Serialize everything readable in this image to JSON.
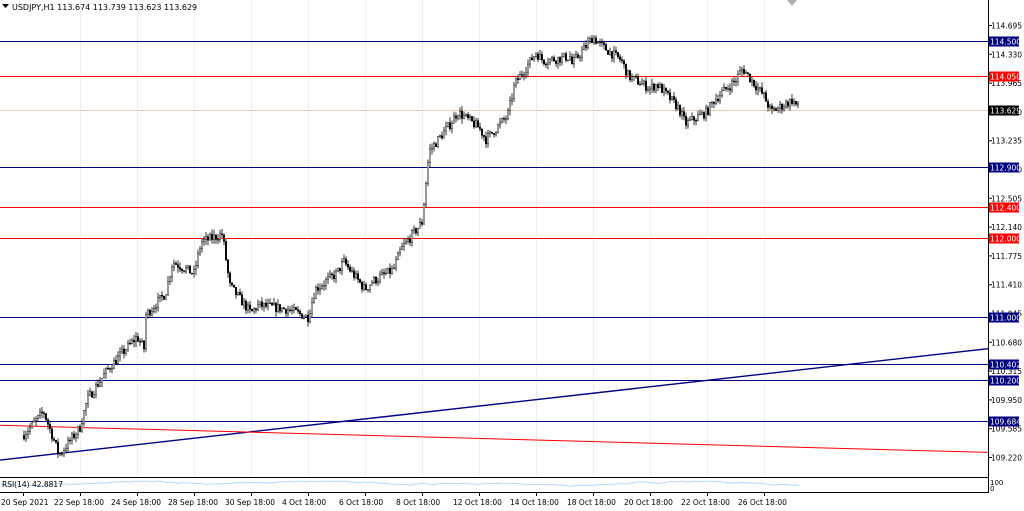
{
  "header": {
    "symbol_info": "USDJPY,H1  113.674 113.739 113.623 113.629"
  },
  "indicator": {
    "label": "RSI(14) 42.8817",
    "scale_top": "100",
    "scale_bottom": "0"
  },
  "colors": {
    "background": "#ffffff",
    "grid": "#c8c8c8",
    "candle": "#000000",
    "blue_level": "#000080",
    "red_level": "#ff0000",
    "bid_line": "#e8b89a",
    "price_tag": "#000000"
  },
  "chart_data": {
    "type": "candlestick",
    "instrument": "USDJPY",
    "timeframe": "H1",
    "last_bar": {
      "open": 113.674,
      "high": 113.739,
      "low": 113.623,
      "close": 113.629
    },
    "y_axis_ticks": [
      114.695,
      114.33,
      113.965,
      113.6,
      113.235,
      112.87,
      112.505,
      112.14,
      111.775,
      111.41,
      111.045,
      110.68,
      110.315,
      109.95,
      109.585,
      109.22
    ],
    "x_axis_labels": [
      "20 Sep 2021",
      "22 Sep 18:00",
      "24 Sep 18:00",
      "28 Sep 18:00",
      "30 Sep 18:00",
      "4 Oct 18:00",
      "6 Oct 18:00",
      "8 Oct 18:00",
      "12 Oct 18:00",
      "14 Oct 18:00",
      "18 Oct 18:00",
      "20 Oct 18:00",
      "22 Oct 18:00",
      "26 Oct 18:00"
    ],
    "ylim": [
      109.02,
      114.98
    ],
    "current_price": 113.629,
    "horizontal_levels": [
      {
        "value": 114.5,
        "label": "114.500",
        "color": "blue"
      },
      {
        "value": 114.05,
        "label": "114.050",
        "color": "red"
      },
      {
        "value": 112.9,
        "label": "112.900",
        "color": "blue"
      },
      {
        "value": 112.4,
        "label": "112.400",
        "color": "red"
      },
      {
        "value": 112.0,
        "label": "112.000",
        "color": "red"
      },
      {
        "value": 111.0,
        "label": "111.000",
        "color": "blue"
      },
      {
        "value": 110.402,
        "label": "110.402",
        "color": "blue"
      },
      {
        "value": 110.2,
        "label": "110.200",
        "color": "blue"
      },
      {
        "value": 109.684,
        "label": "109.684",
        "color": "blue"
      }
    ],
    "trendlines": [
      {
        "color": "blue",
        "from": {
          "date": "20 Sep 2021",
          "price": 109.22
        },
        "to": {
          "date": "28 Oct",
          "price": 110.33
        }
      },
      {
        "color": "red",
        "from": {
          "date": "20 Sep 2021",
          "price": 109.62
        },
        "to": {
          "date": "28 Oct",
          "price": 109.35
        }
      }
    ],
    "path_anchors": [
      [
        "20 Sep 2021",
        109.5
      ],
      [
        "21 Sep",
        109.8
      ],
      [
        "21 Sep 18:00",
        109.25
      ],
      [
        "22 Sep 18:00",
        109.6
      ],
      [
        "23 Sep",
        109.95
      ],
      [
        "23 Sep 18:00",
        110.35
      ],
      [
        "24 Sep 18:00",
        110.75
      ],
      [
        "25 Sep",
        110.6
      ],
      [
        "27 Sep",
        111.0
      ],
      [
        "27 Sep 18:00",
        111.3
      ],
      [
        "28 Sep",
        111.7
      ],
      [
        "28 Sep 18:00",
        111.55
      ],
      [
        "29 Sep",
        111.95
      ],
      [
        "29 Sep 18:00",
        112.05
      ],
      [
        "30 Sep",
        111.4
      ],
      [
        "30 Sep 18:00",
        111.05
      ],
      [
        "1 Oct",
        111.15
      ],
      [
        "4 Oct",
        111.1
      ],
      [
        "4 Oct 18:00",
        111.0
      ],
      [
        "5 Oct",
        111.35
      ],
      [
        "5 Oct 18:00",
        111.55
      ],
      [
        "6 Oct",
        111.7
      ],
      [
        "6 Oct 18:00",
        111.35
      ],
      [
        "7 Oct",
        111.45
      ],
      [
        "7 Oct 18:00",
        111.6
      ],
      [
        "8 Oct",
        111.85
      ],
      [
        "8 Oct 18:00",
        112.2
      ],
      [
        "8 Oct 22:00",
        112.8
      ],
      [
        "11 Oct",
        113.1
      ],
      [
        "11 Oct 18:00",
        113.45
      ],
      [
        "12 Oct",
        113.6
      ],
      [
        "12 Oct 18:00",
        113.4
      ],
      [
        "13 Oct",
        113.25
      ],
      [
        "13 Oct 18:00",
        113.55
      ],
      [
        "14 Oct",
        113.95
      ],
      [
        "14 Oct 18:00",
        114.35
      ],
      [
        "15 Oct",
        114.25
      ],
      [
        "17 Oct",
        114.3
      ],
      [
        "17 Oct 18:00",
        114.05
      ],
      [
        "18 Oct",
        114.2
      ],
      [
        "18 Oct 18:00",
        114.55
      ],
      [
        "19 Oct",
        114.45
      ],
      [
        "19 Oct 18:00",
        114.25
      ],
      [
        "20 Oct",
        114.05
      ],
      [
        "20 Oct 18:00",
        113.9
      ],
      [
        "21 Oct",
        113.95
      ],
      [
        "21 Oct 18:00",
        113.65
      ],
      [
        "22 Oct",
        113.45
      ],
      [
        "22 Oct 18:00",
        113.6
      ],
      [
        "25 Oct",
        113.75
      ],
      [
        "25 Oct 18:00",
        114.0
      ],
      [
        "26 Oct",
        114.15
      ],
      [
        "26 Oct 18:00",
        113.8
      ],
      [
        "27 Oct",
        113.6
      ],
      [
        "27 Oct 18:00",
        113.75
      ],
      [
        "28 Oct",
        113.629
      ]
    ],
    "rsi": {
      "period": 14,
      "value": 42.8817,
      "ylim": [
        0,
        100
      ]
    }
  }
}
